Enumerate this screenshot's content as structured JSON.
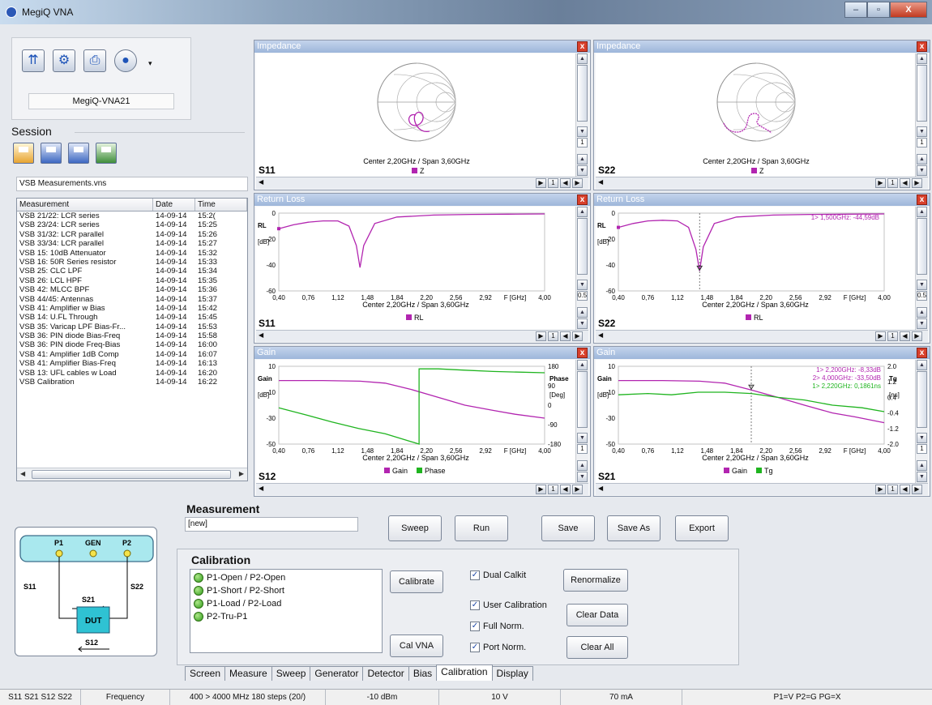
{
  "window": {
    "title": "MegiQ VNA",
    "minimize": "–",
    "maximize": "▫",
    "close": "X"
  },
  "device": {
    "name": "MegiQ-VNA21"
  },
  "session": {
    "label": "Session",
    "file": "VSB Measurements.vns"
  },
  "measurements": {
    "columns": [
      "Measurement",
      "Date",
      "Time"
    ],
    "rows": [
      [
        "VSB 21/22: LCR series",
        "14-09-14",
        "15:2("
      ],
      [
        "VSB 23/24: LCR series",
        "14-09-14",
        "15:25"
      ],
      [
        "VSB 31/32: LCR parallel",
        "14-09-14",
        "15:26"
      ],
      [
        "VSB 33/34: LCR parallel",
        "14-09-14",
        "15:27"
      ],
      [
        "VSB 15: 10dB Attenuator",
        "14-09-14",
        "15:32"
      ],
      [
        "VSB 16: 50R Series resistor",
        "14-09-14",
        "15:33"
      ],
      [
        "VSB 25: CLC LPF",
        "14-09-14",
        "15:34"
      ],
      [
        "VSB 26: LCL HPF",
        "14-09-14",
        "15:35"
      ],
      [
        "VSB 42: MLCC BPF",
        "14-09-14",
        "15:36"
      ],
      [
        "VSB 44/45: Antennas",
        "14-09-14",
        "15:37"
      ],
      [
        "VSB 41: Amplifier w Bias",
        "14-09-14",
        "15:42"
      ],
      [
        "VSB 14: U.FL Through",
        "14-09-14",
        "15:45"
      ],
      [
        "VSB 35: Varicap LPF Bias-Fr...",
        "14-09-14",
        "15:53"
      ],
      [
        "VSB 36: PIN diode Bias-Freq",
        "14-09-14",
        "15:58"
      ],
      [
        "VSB 36: PIN diode Freq-Bias",
        "14-09-14",
        "16:00"
      ],
      [
        "VSB 41: Amplifier 1dB Comp",
        "14-09-14",
        "16:07"
      ],
      [
        "VSB 41: Amplifier Bias-Freq",
        "14-09-14",
        "16:13"
      ],
      [
        "VSB 13: UFL cables w Load",
        "14-09-14",
        "16:20"
      ],
      [
        "VSB Calibration",
        "14-09-14",
        "16:22"
      ]
    ]
  },
  "panels": {
    "imp_left": {
      "title": "Impedance",
      "param": "S11",
      "caption": "Center 2,20GHz / Span 3,60GHz",
      "legend": "Z",
      "scroll": "1",
      "page": "1"
    },
    "imp_right": {
      "title": "Impedance",
      "param": "S22",
      "caption": "Center 2,20GHz / Span 3,60GHz",
      "legend": "Z",
      "scroll": "1",
      "page": "1"
    },
    "rl_left": {
      "title": "Return Loss",
      "param": "S11",
      "caption": "Center 2,20GHz / Span 3,60GHz",
      "legend": "RL",
      "scroll": "0.5",
      "page": "1",
      "yname": "RL",
      "yunit": "[dB]"
    },
    "rl_right": {
      "title": "Return Loss",
      "param": "S22",
      "caption": "Center 2,20GHz / Span 3,60GHz",
      "legend": "RL",
      "scroll": "0.5",
      "page": "1",
      "yname": "RL",
      "yunit": "[dB]",
      "marker": "1> 1,500GHz: -44,59dB"
    },
    "gain_left": {
      "title": "Gain",
      "param": "S12",
      "caption": "Center 2,20GHz / Span 3,60GHz",
      "legend1": "Gain",
      "legend2": "Phase",
      "scroll": "1",
      "page": "1",
      "yname": "Gain",
      "yunit": "[dB]",
      "y2name": "Phase",
      "y2unit": "[Deg]"
    },
    "gain_right": {
      "title": "Gain",
      "param": "S21",
      "caption": "Center 2,20GHz / Span 3,60GHz",
      "legend1": "Gain",
      "legend2": "Tg",
      "scroll": "1",
      "page": "1",
      "yname": "Gain",
      "yunit": "[dB]",
      "y2name": "Tg",
      "y2unit": "[ns]",
      "markers": [
        "1> 2,200GHz: -8,33dB",
        "2> 4,000GHz: -33,50dB",
        "1> 2,220GHz: 0,1861ns"
      ]
    }
  },
  "axes": {
    "freq_ticks": [
      "0,40",
      "0,76",
      "1,12",
      "1,48",
      "1,84",
      "2,20",
      "2,56",
      "2,92",
      "F [GHz]",
      "4,00"
    ],
    "rl_ticks": [
      "0",
      "-20",
      "-40",
      "-60"
    ],
    "gain_ticks": [
      "10",
      "-10",
      "-30",
      "-50"
    ],
    "phase_ticks": [
      "180",
      "90",
      "0",
      "-90",
      "-180"
    ],
    "tg_ticks": [
      "2.0",
      "1.2",
      "0.4",
      "-0.4",
      "-1.2",
      "-2.0"
    ]
  },
  "chart_data": [
    {
      "type": "line",
      "title": "Return Loss S11",
      "xlabel": "F [GHz]",
      "ylabel": "RL [dB]",
      "xlim": [
        0.4,
        4.0
      ],
      "ylim": [
        -60,
        0
      ],
      "series": [
        {
          "name": "RL",
          "x": [
            0.4,
            0.6,
            0.8,
            1.0,
            1.2,
            1.35,
            1.45,
            1.5,
            1.55,
            1.7,
            2.0,
            2.5,
            3.0,
            3.5,
            4.0
          ],
          "y": [
            -12,
            -9,
            -7,
            -6,
            -6,
            -10,
            -25,
            -42,
            -25,
            -8,
            -3,
            -1.5,
            -1,
            -0.8,
            -0.6
          ]
        }
      ]
    },
    {
      "type": "line",
      "title": "Return Loss S22",
      "xlabel": "F [GHz]",
      "ylabel": "RL [dB]",
      "xlim": [
        0.4,
        4.0
      ],
      "ylim": [
        -60,
        0
      ],
      "series": [
        {
          "name": "RL",
          "x": [
            0.4,
            0.6,
            0.8,
            1.0,
            1.2,
            1.35,
            1.45,
            1.5,
            1.55,
            1.7,
            2.0,
            2.5,
            3.0,
            3.5,
            4.0
          ],
          "y": [
            -11,
            -8,
            -6,
            -5.5,
            -6,
            -11,
            -28,
            -44.6,
            -26,
            -8,
            -3,
            -1.5,
            -1,
            -0.8,
            -0.6
          ]
        }
      ]
    },
    {
      "type": "line",
      "title": "Gain S12",
      "xlabel": "F [GHz]",
      "ylabel": "Gain [dB]",
      "xlim": [
        0.4,
        4.0
      ],
      "ylim": [
        -50,
        10
      ],
      "series": [
        {
          "name": "Gain",
          "x": [
            0.4,
            1.0,
            1.5,
            1.84,
            2.2,
            2.56,
            2.92,
            3.3,
            3.6,
            4.0
          ],
          "y": [
            -1,
            -1,
            -1.5,
            -3,
            -8,
            -14,
            -20,
            -24,
            -27,
            -30
          ]
        },
        {
          "name": "Phase",
          "x": [
            0.4,
            0.8,
            1.12,
            1.48,
            1.84,
            2.3,
            2.3,
            2.56,
            2.92,
            3.3,
            4.0
          ],
          "y": [
            -22,
            -28,
            -33,
            -38,
            -42,
            -50,
            8,
            8,
            7,
            6,
            5
          ]
        }
      ]
    },
    {
      "type": "line",
      "title": "Gain S21",
      "xlabel": "F [GHz]",
      "ylabel": "Gain [dB]",
      "xlim": [
        0.4,
        4.0
      ],
      "ylim": [
        -50,
        10
      ],
      "series": [
        {
          "name": "Gain",
          "x": [
            0.4,
            1.0,
            1.5,
            1.84,
            2.2,
            2.56,
            2.92,
            3.3,
            3.6,
            4.0
          ],
          "y": [
            -1,
            -1,
            -1.5,
            -3,
            -8.3,
            -14,
            -20,
            -26,
            -29,
            -33.5
          ]
        },
        {
          "name": "Tg",
          "x": [
            0.4,
            0.8,
            1.12,
            1.48,
            1.84,
            2.2,
            2.56,
            2.92,
            3.3,
            3.7,
            4.0
          ],
          "y": [
            -12,
            -11,
            -12,
            -10,
            -10,
            -11,
            -14,
            -16,
            -20,
            -22,
            -25
          ]
        }
      ]
    }
  ],
  "measurement": {
    "label": "Measurement",
    "name": "[new]",
    "buttons": {
      "sweep": "Sweep",
      "run": "Run",
      "save": "Save",
      "save_as": "Save As",
      "export": "Export"
    }
  },
  "calibration": {
    "label": "Calibration",
    "items": [
      "P1-Open / P2-Open",
      "P1-Short / P2-Short",
      "P1-Load / P2-Load",
      "P2-Tru-P1"
    ],
    "calibrate": "Calibrate",
    "cal_vna": "Cal VNA",
    "renormalize": "Renormalize",
    "clear_data": "Clear Data",
    "clear_all": "Clear All",
    "checks": {
      "dual_calkit": "Dual Calkit",
      "user_cal": "User Calibration",
      "full_norm": "Full Norm.",
      "port_norm": "Port Norm."
    }
  },
  "diagram": {
    "p1": "P1",
    "gen": "GEN",
    "p2": "P2",
    "s11": "S11",
    "s22": "S22",
    "s21": "S21",
    "s12": "S12",
    "dut": "DUT"
  },
  "tabs": [
    "Screen",
    "Measure",
    "Sweep",
    "Generator",
    "Detector",
    "Bias",
    "Calibration",
    "Display"
  ],
  "status": [
    "S11 S21 S12 S22",
    "Frequency",
    "400 > 4000 MHz 180 steps (20/)",
    "-10 dBm",
    "10 V",
    "70 mA",
    "P1=V P2=G PG=X"
  ],
  "colors": {
    "trace1": "#b225b0",
    "trace2": "#1fb41f",
    "smith_grid": "#9a9a9a",
    "title_bar": "#9db6da",
    "close": "#d8402c"
  }
}
